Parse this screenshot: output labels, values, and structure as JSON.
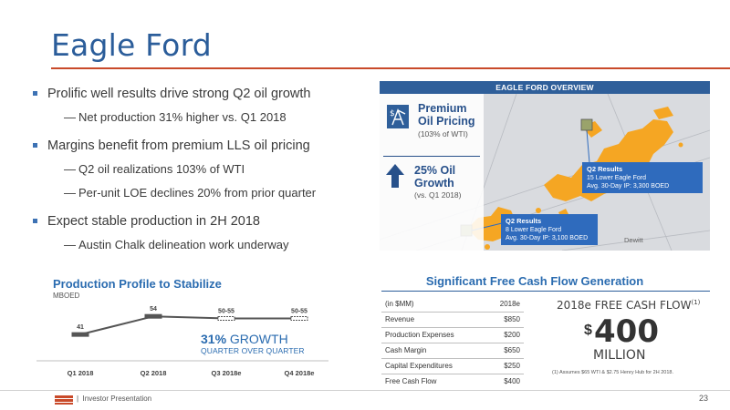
{
  "title": "Eagle Ford",
  "bullets": [
    {
      "text": "Prolific well results drive strong Q2 oil growth",
      "subs": [
        "Net production 31% higher vs. Q1 2018"
      ]
    },
    {
      "text": "Margins benefit from premium LLS oil pricing",
      "subs": [
        "Q2 oil realizations 103% of WTI",
        "Per-unit LOE declines 20% from prior quarter"
      ]
    },
    {
      "text": "Expect stable production in 2H 2018",
      "subs": [
        "Austin Chalk delineation work underway"
      ]
    }
  ],
  "dash": "—",
  "map": {
    "header": "EAGLE FORD OVERVIEW",
    "pricing_title_1": "Premium",
    "pricing_title_2": "Oil Pricing",
    "pricing_sub": "(103% of WTI)",
    "growth_title_1": "25% Oil",
    "growth_title_2": "Growth",
    "growth_sub": "(vs. Q1 2018)",
    "callout1": {
      "title": "Q2 Results",
      "line1": "15 Lower Eagle Ford",
      "line2": "Avg. 30-Day IP: 3,300 BOED"
    },
    "callout2": {
      "title": "Q2 Results",
      "line1": "8 Lower Eagle Ford",
      "line2": "Avg. 30-Day IP: 3,100 BOED"
    },
    "place": "Dewitt"
  },
  "production": {
    "title": "Production Profile to Stabilize",
    "unit": "MBOED",
    "growth_pct": "31%",
    "growth_word": "GROWTH",
    "growth_sub": "QUARTER OVER QUARTER"
  },
  "chart_data": {
    "type": "line",
    "categories": [
      "Q1 2018",
      "Q2 2018",
      "Q3 2018e",
      "Q4 2018e"
    ],
    "values": [
      41,
      54,
      52.5,
      52.5
    ],
    "data_labels": [
      "41",
      "54",
      "50-55",
      "50-55"
    ],
    "estimate_range": [
      50,
      55
    ],
    "ylim": [
      30,
      60
    ],
    "title": "Production Profile to Stabilize",
    "ylabel": "MBOED",
    "grid": false
  },
  "fcf": {
    "title": "Significant Free Cash Flow Generation",
    "table_header": [
      "(in $MM)",
      "2018e"
    ],
    "rows": [
      [
        "Revenue",
        "$850"
      ],
      [
        "Production Expenses",
        "$200"
      ],
      [
        "Cash Margin",
        "$650"
      ],
      [
        "Capital Expenditures",
        "$250"
      ],
      [
        "Free Cash Flow",
        "$400"
      ]
    ],
    "big_label": "2018e FREE CASH FLOW",
    "big_label_sup": "(1)",
    "dollar": "$",
    "big_value": "400",
    "big_unit": "MILLION",
    "footnote": "(1) Assumes $65 WTI & $2.75 Henry Hub for 2H 2018."
  },
  "footer": {
    "separator": "|",
    "text": "Investor Presentation",
    "page": "23"
  },
  "colors": {
    "title_blue": "#2b5d9a",
    "accent_blue": "#2b6cb0",
    "accent_red": "#c94a2a",
    "acreage_orange": "#f5a623"
  }
}
